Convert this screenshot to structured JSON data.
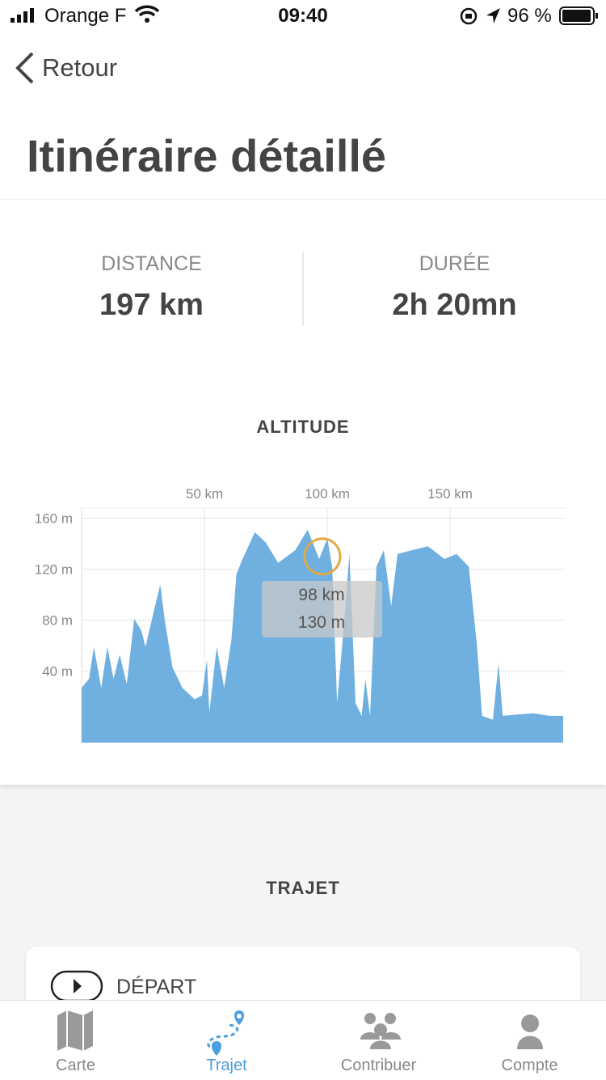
{
  "status_bar": {
    "carrier": "Orange F",
    "time": "09:40",
    "battery": "96 %"
  },
  "nav": {
    "back": "Retour"
  },
  "header": {
    "title": "Itinéraire détaillé"
  },
  "stats": [
    {
      "label": "DISTANCE",
      "value": "197 km"
    },
    {
      "label": "DURÉE",
      "value": "2h 20mn"
    }
  ],
  "chart_data": {
    "type": "area",
    "title": "ALTITUDE",
    "color": "#6fb0e0",
    "x": [
      0,
      3,
      5,
      8,
      10.5,
      13,
      15.5,
      18.4,
      21.4,
      24.3,
      26,
      29,
      32,
      34,
      37,
      41,
      46,
      49,
      51,
      52,
      55,
      58,
      61,
      63,
      65.5,
      70.5,
      75,
      80,
      87,
      92,
      96.7,
      100,
      102,
      104,
      106.6,
      109,
      111.5,
      114,
      115.5,
      117.4,
      120,
      123,
      126,
      128.6,
      134.5,
      141,
      147.7,
      152.6,
      157.6,
      161,
      163,
      167.4,
      169.7,
      171.4,
      177,
      184,
      190.5,
      196
    ],
    "values": [
      27,
      34,
      59,
      27,
      59,
      34,
      53,
      30,
      81,
      72,
      59,
      84,
      108,
      78,
      43,
      27,
      18,
      21,
      49,
      8,
      59,
      27,
      65,
      116,
      128,
      149,
      141,
      125,
      135,
      151,
      128,
      144,
      122,
      15,
      72,
      132,
      15,
      5,
      34,
      5,
      122,
      135,
      91,
      132,
      135,
      138,
      128,
      132,
      122,
      59,
      5,
      2,
      46,
      5,
      6,
      7,
      5,
      5
    ],
    "xlim": [
      0,
      197
    ],
    "ylim": [
      -16,
      168
    ],
    "xticks": [
      {
        "value": 50,
        "label": "50 km"
      },
      {
        "value": 100,
        "label": "100 km"
      },
      {
        "value": 150,
        "label": "150 km"
      }
    ],
    "yticks": [
      {
        "value": 40,
        "label": "40 m"
      },
      {
        "value": 80,
        "label": "80 m"
      },
      {
        "value": 120,
        "label": "120 m"
      },
      {
        "value": 160,
        "label": "160 m"
      }
    ],
    "grid": true,
    "highlight": {
      "x": 98,
      "value": 130,
      "labels": [
        "98 km",
        "130 m"
      ]
    }
  },
  "route": {
    "title": "TRAJET",
    "first_step": "DÉPART"
  },
  "tabs": [
    "Carte",
    "Trajet",
    "Contribuer",
    "Compte"
  ]
}
